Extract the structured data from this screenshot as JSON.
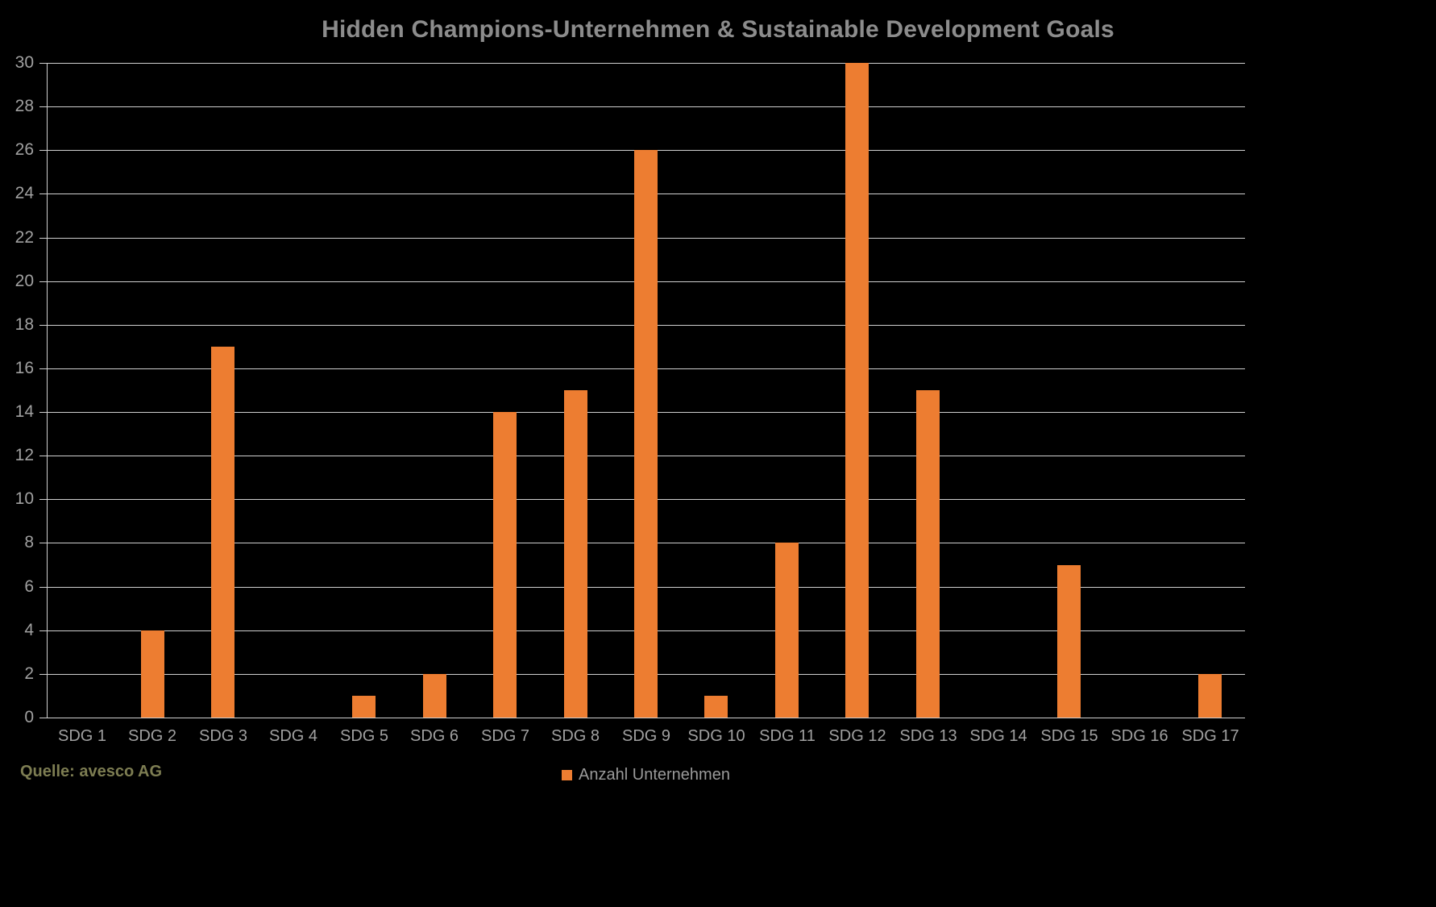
{
  "title": "Hidden Champions-Unternehmen & Sustainable Development Goals",
  "source": "Quelle: avesco AG",
  "legend": {
    "label": "Anzahl Unternehmen"
  },
  "colors": {
    "background": "#000000",
    "bar": "#ED7D31",
    "gridline": "#cfcfcf",
    "title_text": "#8c8c8c",
    "axis_text": "#a0a0a0",
    "legend_text": "#9a9a9a",
    "source_text": "#7d7d52"
  },
  "chart_data": {
    "type": "bar",
    "title": "Hidden Champions-Unternehmen & Sustainable Development Goals",
    "categories": [
      "SDG 1",
      "SDG 2",
      "SDG 3",
      "SDG 4",
      "SDG 5",
      "SDG 6",
      "SDG 7",
      "SDG 8",
      "SDG 9",
      "SDG 10",
      "SDG 11",
      "SDG 12",
      "SDG 13",
      "SDG 14",
      "SDG 15",
      "SDG 16",
      "SDG 17"
    ],
    "values": [
      0,
      4,
      17,
      0,
      1,
      2,
      14,
      15,
      26,
      1,
      8,
      30,
      15,
      0,
      7,
      0,
      2
    ],
    "xlabel": "",
    "ylabel": "",
    "ylim": [
      0,
      30
    ],
    "ytick_step": 2,
    "grid": true,
    "legend": [
      "Anzahl Unternehmen"
    ],
    "legend_position": "bottom",
    "background": "black"
  }
}
